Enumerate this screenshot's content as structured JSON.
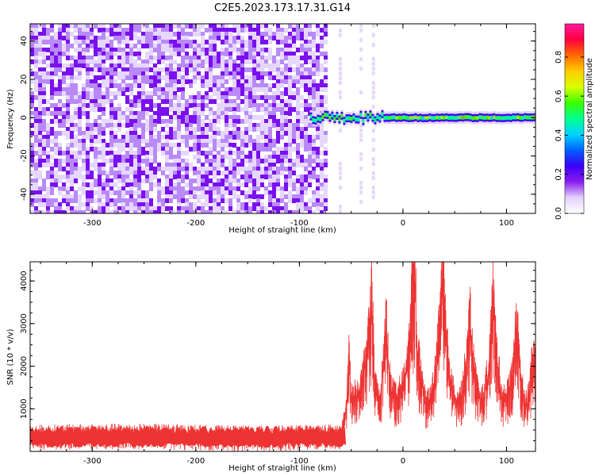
{
  "figure": {
    "title": "C2E5.2023.173.17.31.G14"
  },
  "chart_data": [
    {
      "type": "heatmap",
      "xlabel": "Height of straight line (km)",
      "ylabel": "Frequency (Hz)",
      "xlim": [
        -360,
        128
      ],
      "ylim": [
        -50,
        49
      ],
      "xticks": [
        -300,
        -200,
        -100,
        0,
        100
      ],
      "yticks": [
        -40,
        -20,
        0,
        20,
        40
      ],
      "colorbar": {
        "label": "Normalized spectral amplitude",
        "range": [
          0.0,
          0.97
        ],
        "ticks": [
          0.0,
          0.2,
          0.4,
          0.6,
          0.8
        ],
        "colormap": [
          "#ffffff",
          "#e3d3fb",
          "#8a1cf0",
          "#3b00f5",
          "#0060ff",
          "#00d4ff",
          "#00ff90",
          "#3cff00",
          "#d8ff00",
          "#ffcc00",
          "#ff6a00",
          "#ff0040",
          "#ff1a9c"
        ]
      },
      "features": {
        "noise_region_x": [
          -360,
          -75
        ],
        "noise_level": 0.12,
        "signal_line_x": [
          -90,
          128
        ],
        "signal_line_frequency": 0,
        "signal_peak_level": 0.85
      }
    },
    {
      "type": "line",
      "xlabel": "Height of straight line (km)",
      "ylabel": "SNR (10 * v/v)",
      "xlim": [
        -360,
        128
      ],
      "ylim": [
        0,
        4450
      ],
      "xticks": [
        -300,
        -200,
        -100,
        0,
        100
      ],
      "yticks": [
        1000,
        2000,
        3000,
        4000
      ],
      "color": "#ee3333",
      "series_points": [
        [
          -360,
          400
        ],
        [
          -300,
          420
        ],
        [
          -250,
          430
        ],
        [
          -200,
          400
        ],
        [
          -150,
          380
        ],
        [
          -100,
          390
        ],
        [
          -60,
          420
        ],
        [
          -55,
          900
        ],
        [
          -52,
          2200
        ],
        [
          -50,
          1200
        ],
        [
          -45,
          1300
        ],
        [
          -40,
          1500
        ],
        [
          -33,
          2600
        ],
        [
          -30,
          3700
        ],
        [
          -27,
          1500
        ],
        [
          -22,
          1100
        ],
        [
          -16,
          2900
        ],
        [
          -12,
          1400
        ],
        [
          -6,
          1200
        ],
        [
          0,
          1500
        ],
        [
          5,
          2000
        ],
        [
          9,
          3800
        ],
        [
          11,
          4350
        ],
        [
          14,
          2300
        ],
        [
          18,
          1600
        ],
        [
          22,
          1100
        ],
        [
          27,
          1200
        ],
        [
          32,
          1900
        ],
        [
          37,
          3300
        ],
        [
          39,
          3850
        ],
        [
          42,
          2400
        ],
        [
          47,
          1450
        ],
        [
          52,
          1150
        ],
        [
          57,
          1300
        ],
        [
          62,
          2200
        ],
        [
          65,
          3050
        ],
        [
          68,
          2000
        ],
        [
          73,
          1250
        ],
        [
          78,
          1200
        ],
        [
          83,
          1900
        ],
        [
          87,
          3600
        ],
        [
          90,
          2300
        ],
        [
          95,
          1300
        ],
        [
          100,
          1200
        ],
        [
          105,
          1700
        ],
        [
          110,
          2900
        ],
        [
          113,
          1900
        ],
        [
          118,
          1000
        ],
        [
          122,
          1300
        ],
        [
          125,
          2200
        ],
        [
          128,
          1800
        ]
      ]
    }
  ]
}
